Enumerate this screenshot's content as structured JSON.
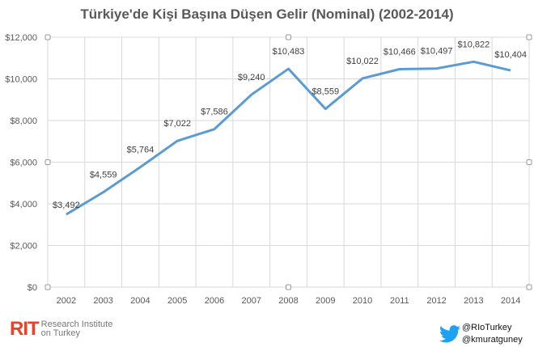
{
  "chart_data": {
    "type": "line",
    "title": "Türkiye'de Kişi Başına Düşen Gelir (Nominal) (2002-2014)",
    "categories": [
      "2002",
      "2003",
      "2004",
      "2005",
      "2006",
      "2007",
      "2008",
      "2009",
      "2010",
      "2011",
      "2012",
      "2013",
      "2014"
    ],
    "values": [
      3492,
      4559,
      5764,
      7022,
      7586,
      9240,
      10483,
      8559,
      10022,
      10466,
      10497,
      10822,
      10404
    ],
    "data_labels": [
      "$3,492",
      "$4,559",
      "$5,764",
      "$7,022",
      "$7,586",
      "$9,240",
      "$10,483",
      "$8,559",
      "$10,022",
      "$10,466",
      "$10,497",
      "$10,822",
      "$10,404"
    ],
    "yticks": [
      "$0",
      "$2,000",
      "$4,000",
      "$6,000",
      "$8,000",
      "$10,000",
      "$12,000"
    ],
    "ylim": [
      0,
      12000
    ],
    "grid": true,
    "line_color": "#5b9bd5"
  },
  "footer": {
    "logo_mark": "RIT",
    "logo_line1": "Research Institute",
    "logo_line2": "on Turkey",
    "twitter1": "@RIoTurkey",
    "twitter2": "@kmuratguney"
  }
}
